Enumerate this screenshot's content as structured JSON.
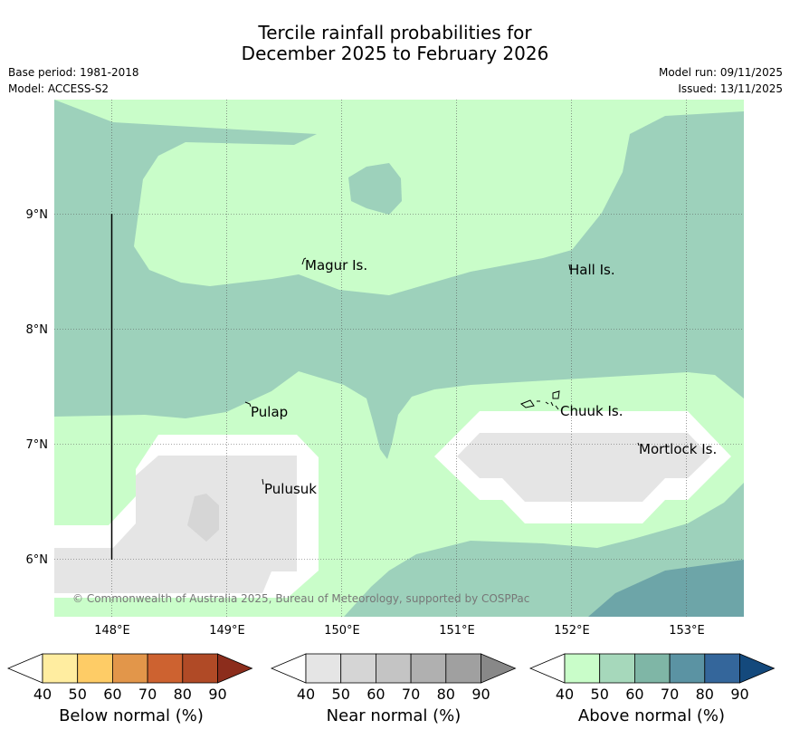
{
  "title": {
    "line1": "Tercile rainfall probabilities for",
    "line2": "December 2025 to February 2026"
  },
  "meta": {
    "base_period": "Base period: 1981-2018",
    "model": "Model: ACCESS-S2",
    "model_run": "Model run: 09/11/2025",
    "issued": "Issued: 13/11/2025"
  },
  "map": {
    "lon_labels": [
      "148°E",
      "149°E",
      "150°E",
      "151°E",
      "152°E",
      "153°E"
    ],
    "lat_labels": [
      "9°N",
      "8°N",
      "7°N",
      "6°N"
    ],
    "places": [
      "Magur Is.",
      "Hall Is.",
      "Pulap",
      "Chuuk Is.",
      "Mortlock Is.",
      "Pulusuk"
    ],
    "copyright": "© Commonwealth of Australia 2025, Bureau of Meteorology, supported by COSPPac",
    "colors": {
      "above_40": "#c9fdc9",
      "above_50": "#9dd1bb",
      "above_60": "#6da5a8",
      "near_40": "#e5e5e5",
      "no_signal": "#ffffff"
    }
  },
  "colorbars": [
    {
      "label": "Below normal (%)",
      "ticks": [
        "40",
        "50",
        "60",
        "70",
        "80",
        "90"
      ],
      "colors": [
        "#ffeda0",
        "#fecc66",
        "#e2964a",
        "#cd6230",
        "#b04a26",
        "#8c2d1c"
      ]
    },
    {
      "label": "Near normal (%)",
      "ticks": [
        "40",
        "50",
        "60",
        "70",
        "80",
        "90"
      ],
      "colors": [
        "#e5e5e5",
        "#d5d5d5",
        "#c4c4c4",
        "#b0b0b0",
        "#a0a0a0",
        "#888888"
      ]
    },
    {
      "label": "Above normal (%)",
      "ticks": [
        "40",
        "50",
        "60",
        "70",
        "80",
        "90"
      ],
      "colors": [
        "#c9fdc9",
        "#a6d8bb",
        "#7fb6a6",
        "#5b93a3",
        "#34669b",
        "#14497c"
      ]
    }
  ]
}
